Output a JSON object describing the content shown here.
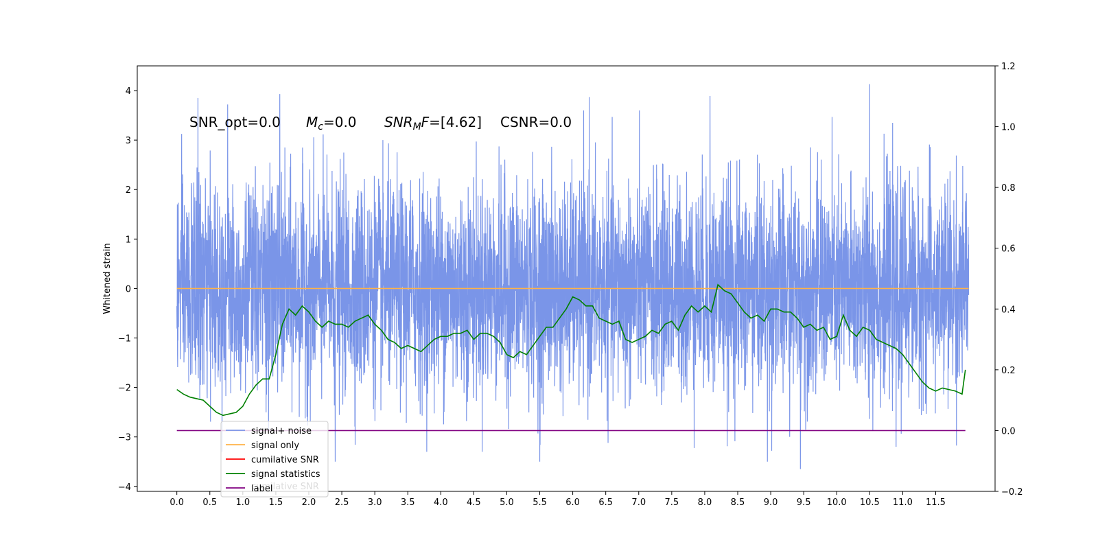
{
  "chart_data": {
    "type": "line",
    "ylabel_left": "Whitened strain",
    "xlim": [
      -0.6,
      12.4
    ],
    "ylim_left": [
      -4.1,
      4.5
    ],
    "ylim_right": [
      -0.2,
      1.2
    ],
    "x_ticks": [
      "0.0",
      "0.5",
      "1.0",
      "1.5",
      "2.0",
      "2.5",
      "3.0",
      "3.5",
      "4.0",
      "4.5",
      "5.0",
      "5.5",
      "6.0",
      "6.5",
      "7.0",
      "7.5",
      "8.0",
      "8.5",
      "9.0",
      "9.5",
      "10.0",
      "10.5",
      "11.0",
      "11.5"
    ],
    "y_ticks_left": [
      "−4",
      "−3",
      "−2",
      "−1",
      "0",
      "1",
      "2",
      "3",
      "4"
    ],
    "y_ticks_right": [
      "−0.2",
      "0.0",
      "0.2",
      "0.4",
      "0.6",
      "0.8",
      "1.0",
      "1.2"
    ],
    "annotations": {
      "snr_opt": "SNR_opt=0.0",
      "mc_symbol": "M",
      "mc_sub": "c",
      "mc_value": "=0.0",
      "snrmf_symbol": "SNR",
      "snrmf_sub": "M",
      "snrmf_f": "F",
      "snrmf_value": "=[4.62]",
      "csnr": "CSNR=0.0"
    },
    "legend": {
      "location": "lower-left",
      "entries": [
        {
          "label": "signal+ noise",
          "color": "#7a95e8"
        },
        {
          "label": "signal only",
          "color": "#ffb347"
        },
        {
          "label": "cumilative SNR",
          "color": "#ff0000"
        },
        {
          "label": "signal statistics",
          "color": "#008000"
        },
        {
          "label": "label",
          "color": "#800080"
        }
      ],
      "ghost_text": "cumilative SNR"
    },
    "series": [
      {
        "name": "signal+ noise",
        "axis": "left",
        "color": "#7a95e8",
        "description_style": "noise",
        "x_range": [
          0.0,
          12.0
        ],
        "noise_sigma": 1.0,
        "spikes": [
          {
            "x": 0.32,
            "y": 3.85
          },
          {
            "x": 0.77,
            "y": 3.72
          },
          {
            "x": 1.56,
            "y": 3.93
          },
          {
            "x": 6.25,
            "y": 3.87
          },
          {
            "x": 8.08,
            "y": 3.89
          },
          {
            "x": 10.5,
            "y": 4.13
          },
          {
            "x": 9.45,
            "y": -3.65
          },
          {
            "x": 5.5,
            "y": -3.5
          },
          {
            "x": 2.4,
            "y": -3.5
          },
          {
            "x": 8.95,
            "y": -3.5
          },
          {
            "x": 10.9,
            "y": -3.2
          }
        ]
      },
      {
        "name": "signal only",
        "axis": "left",
        "color": "#ffb347",
        "x": [
          0.0,
          12.0
        ],
        "y": [
          0.0,
          0.0
        ]
      },
      {
        "name": "signal statistics",
        "axis": "right",
        "color": "#008000",
        "x": [
          0.0,
          0.1,
          0.2,
          0.3,
          0.4,
          0.5,
          0.6,
          0.7,
          0.8,
          0.9,
          1.0,
          1.1,
          1.2,
          1.3,
          1.4,
          1.5,
          1.6,
          1.7,
          1.8,
          1.9,
          2.0,
          2.1,
          2.2,
          2.3,
          2.4,
          2.5,
          2.6,
          2.7,
          2.8,
          2.9,
          3.0,
          3.1,
          3.2,
          3.3,
          3.4,
          3.5,
          3.6,
          3.7,
          3.8,
          3.9,
          4.0,
          4.1,
          4.2,
          4.3,
          4.4,
          4.5,
          4.6,
          4.7,
          4.8,
          4.9,
          5.0,
          5.1,
          5.2,
          5.3,
          5.4,
          5.5,
          5.6,
          5.7,
          5.8,
          5.9,
          6.0,
          6.1,
          6.2,
          6.3,
          6.4,
          6.5,
          6.6,
          6.7,
          6.8,
          6.9,
          7.0,
          7.1,
          7.2,
          7.3,
          7.4,
          7.5,
          7.6,
          7.7,
          7.8,
          7.9,
          8.0,
          8.1,
          8.2,
          8.3,
          8.4,
          8.5,
          8.6,
          8.7,
          8.8,
          8.9,
          9.0,
          9.1,
          9.2,
          9.3,
          9.4,
          9.5,
          9.6,
          9.7,
          9.8,
          9.9,
          10.0,
          10.1,
          10.2,
          10.3,
          10.4,
          10.5,
          10.6,
          10.7,
          10.8,
          10.9,
          11.0,
          11.1,
          11.2,
          11.3,
          11.4,
          11.5,
          11.6,
          11.7,
          11.8,
          11.9,
          11.95
        ],
        "y": [
          0.135,
          0.12,
          0.11,
          0.105,
          0.1,
          0.08,
          0.06,
          0.05,
          0.055,
          0.06,
          0.08,
          0.12,
          0.15,
          0.17,
          0.17,
          0.25,
          0.35,
          0.4,
          0.38,
          0.41,
          0.39,
          0.36,
          0.34,
          0.36,
          0.35,
          0.35,
          0.34,
          0.36,
          0.37,
          0.38,
          0.35,
          0.33,
          0.3,
          0.29,
          0.27,
          0.28,
          0.27,
          0.26,
          0.28,
          0.3,
          0.31,
          0.31,
          0.32,
          0.32,
          0.33,
          0.3,
          0.32,
          0.32,
          0.31,
          0.29,
          0.25,
          0.24,
          0.26,
          0.25,
          0.28,
          0.31,
          0.34,
          0.34,
          0.37,
          0.4,
          0.44,
          0.43,
          0.41,
          0.41,
          0.37,
          0.36,
          0.35,
          0.36,
          0.3,
          0.29,
          0.3,
          0.31,
          0.33,
          0.32,
          0.35,
          0.36,
          0.33,
          0.38,
          0.41,
          0.39,
          0.41,
          0.39,
          0.48,
          0.46,
          0.45,
          0.42,
          0.39,
          0.37,
          0.38,
          0.36,
          0.4,
          0.4,
          0.39,
          0.39,
          0.37,
          0.34,
          0.35,
          0.33,
          0.34,
          0.3,
          0.31,
          0.38,
          0.33,
          0.31,
          0.34,
          0.33,
          0.3,
          0.29,
          0.28,
          0.27,
          0.25,
          0.22,
          0.19,
          0.16,
          0.14,
          0.13,
          0.14,
          0.135,
          0.13,
          0.12,
          0.2
        ]
      },
      {
        "name": "label",
        "axis": "right",
        "color": "#800080",
        "x": [
          0.0,
          11.95
        ],
        "y": [
          0.0,
          0.0
        ]
      }
    ]
  }
}
